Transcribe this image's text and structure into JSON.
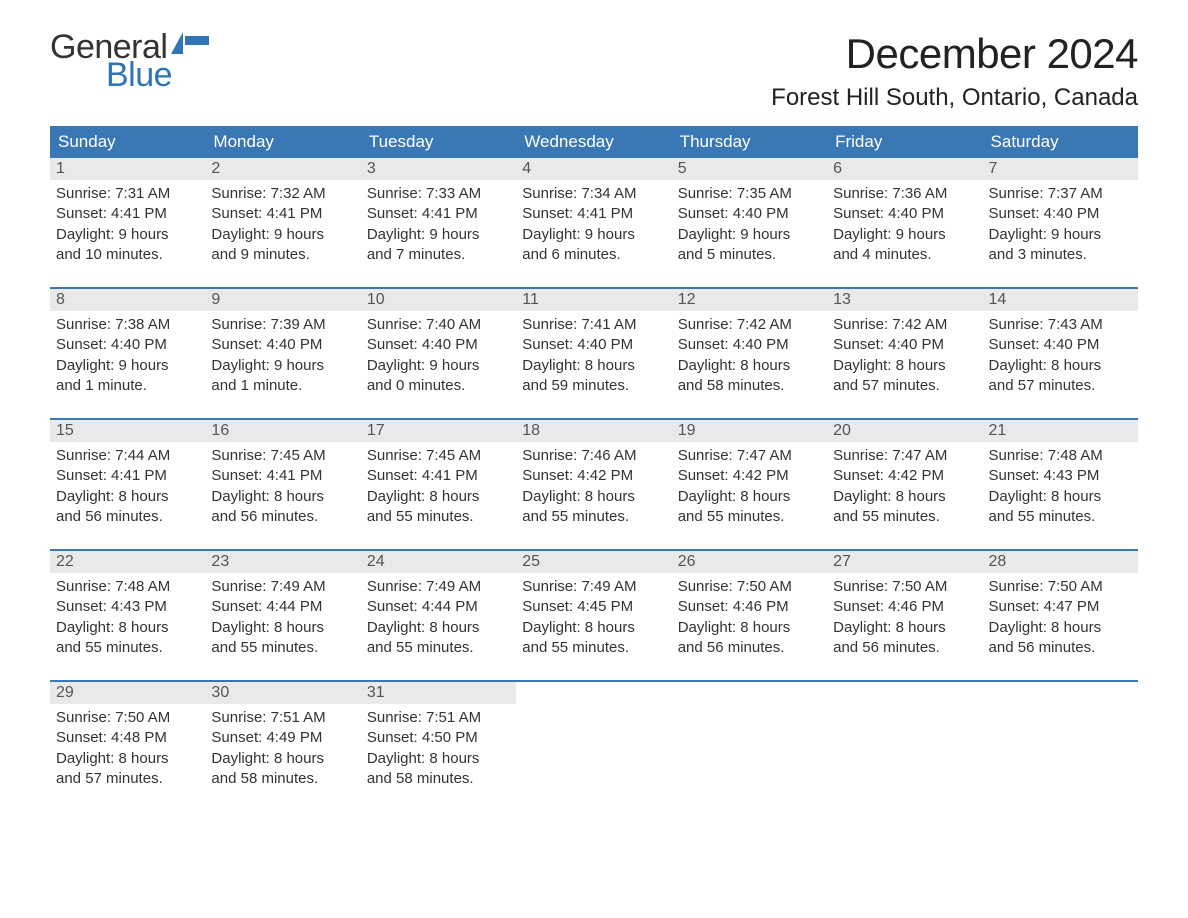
{
  "logo": {
    "word1": "General",
    "word2": "Blue"
  },
  "title": "December 2024",
  "location": "Forest Hill South, Ontario, Canada",
  "colors": {
    "header_bg": "#3a78b5",
    "header_text": "#ffffff",
    "daynum_bg": "#e9e9e9",
    "daynum_text": "#555555",
    "body_text": "#333333",
    "accent": "#2f75b5",
    "page_bg": "#ffffff"
  },
  "day_headers": [
    "Sunday",
    "Monday",
    "Tuesday",
    "Wednesday",
    "Thursday",
    "Friday",
    "Saturday"
  ],
  "weeks": [
    [
      {
        "n": "1",
        "sunrise": "Sunrise: 7:31 AM",
        "sunset": "Sunset: 4:41 PM",
        "day1": "Daylight: 9 hours",
        "day2": "and 10 minutes."
      },
      {
        "n": "2",
        "sunrise": "Sunrise: 7:32 AM",
        "sunset": "Sunset: 4:41 PM",
        "day1": "Daylight: 9 hours",
        "day2": "and 9 minutes."
      },
      {
        "n": "3",
        "sunrise": "Sunrise: 7:33 AM",
        "sunset": "Sunset: 4:41 PM",
        "day1": "Daylight: 9 hours",
        "day2": "and 7 minutes."
      },
      {
        "n": "4",
        "sunrise": "Sunrise: 7:34 AM",
        "sunset": "Sunset: 4:41 PM",
        "day1": "Daylight: 9 hours",
        "day2": "and 6 minutes."
      },
      {
        "n": "5",
        "sunrise": "Sunrise: 7:35 AM",
        "sunset": "Sunset: 4:40 PM",
        "day1": "Daylight: 9 hours",
        "day2": "and 5 minutes."
      },
      {
        "n": "6",
        "sunrise": "Sunrise: 7:36 AM",
        "sunset": "Sunset: 4:40 PM",
        "day1": "Daylight: 9 hours",
        "day2": "and 4 minutes."
      },
      {
        "n": "7",
        "sunrise": "Sunrise: 7:37 AM",
        "sunset": "Sunset: 4:40 PM",
        "day1": "Daylight: 9 hours",
        "day2": "and 3 minutes."
      }
    ],
    [
      {
        "n": "8",
        "sunrise": "Sunrise: 7:38 AM",
        "sunset": "Sunset: 4:40 PM",
        "day1": "Daylight: 9 hours",
        "day2": "and 1 minute."
      },
      {
        "n": "9",
        "sunrise": "Sunrise: 7:39 AM",
        "sunset": "Sunset: 4:40 PM",
        "day1": "Daylight: 9 hours",
        "day2": "and 1 minute."
      },
      {
        "n": "10",
        "sunrise": "Sunrise: 7:40 AM",
        "sunset": "Sunset: 4:40 PM",
        "day1": "Daylight: 9 hours",
        "day2": "and 0 minutes."
      },
      {
        "n": "11",
        "sunrise": "Sunrise: 7:41 AM",
        "sunset": "Sunset: 4:40 PM",
        "day1": "Daylight: 8 hours",
        "day2": "and 59 minutes."
      },
      {
        "n": "12",
        "sunrise": "Sunrise: 7:42 AM",
        "sunset": "Sunset: 4:40 PM",
        "day1": "Daylight: 8 hours",
        "day2": "and 58 minutes."
      },
      {
        "n": "13",
        "sunrise": "Sunrise: 7:42 AM",
        "sunset": "Sunset: 4:40 PM",
        "day1": "Daylight: 8 hours",
        "day2": "and 57 minutes."
      },
      {
        "n": "14",
        "sunrise": "Sunrise: 7:43 AM",
        "sunset": "Sunset: 4:40 PM",
        "day1": "Daylight: 8 hours",
        "day2": "and 57 minutes."
      }
    ],
    [
      {
        "n": "15",
        "sunrise": "Sunrise: 7:44 AM",
        "sunset": "Sunset: 4:41 PM",
        "day1": "Daylight: 8 hours",
        "day2": "and 56 minutes."
      },
      {
        "n": "16",
        "sunrise": "Sunrise: 7:45 AM",
        "sunset": "Sunset: 4:41 PM",
        "day1": "Daylight: 8 hours",
        "day2": "and 56 minutes."
      },
      {
        "n": "17",
        "sunrise": "Sunrise: 7:45 AM",
        "sunset": "Sunset: 4:41 PM",
        "day1": "Daylight: 8 hours",
        "day2": "and 55 minutes."
      },
      {
        "n": "18",
        "sunrise": "Sunrise: 7:46 AM",
        "sunset": "Sunset: 4:42 PM",
        "day1": "Daylight: 8 hours",
        "day2": "and 55 minutes."
      },
      {
        "n": "19",
        "sunrise": "Sunrise: 7:47 AM",
        "sunset": "Sunset: 4:42 PM",
        "day1": "Daylight: 8 hours",
        "day2": "and 55 minutes."
      },
      {
        "n": "20",
        "sunrise": "Sunrise: 7:47 AM",
        "sunset": "Sunset: 4:42 PM",
        "day1": "Daylight: 8 hours",
        "day2": "and 55 minutes."
      },
      {
        "n": "21",
        "sunrise": "Sunrise: 7:48 AM",
        "sunset": "Sunset: 4:43 PM",
        "day1": "Daylight: 8 hours",
        "day2": "and 55 minutes."
      }
    ],
    [
      {
        "n": "22",
        "sunrise": "Sunrise: 7:48 AM",
        "sunset": "Sunset: 4:43 PM",
        "day1": "Daylight: 8 hours",
        "day2": "and 55 minutes."
      },
      {
        "n": "23",
        "sunrise": "Sunrise: 7:49 AM",
        "sunset": "Sunset: 4:44 PM",
        "day1": "Daylight: 8 hours",
        "day2": "and 55 minutes."
      },
      {
        "n": "24",
        "sunrise": "Sunrise: 7:49 AM",
        "sunset": "Sunset: 4:44 PM",
        "day1": "Daylight: 8 hours",
        "day2": "and 55 minutes."
      },
      {
        "n": "25",
        "sunrise": "Sunrise: 7:49 AM",
        "sunset": "Sunset: 4:45 PM",
        "day1": "Daylight: 8 hours",
        "day2": "and 55 minutes."
      },
      {
        "n": "26",
        "sunrise": "Sunrise: 7:50 AM",
        "sunset": "Sunset: 4:46 PM",
        "day1": "Daylight: 8 hours",
        "day2": "and 56 minutes."
      },
      {
        "n": "27",
        "sunrise": "Sunrise: 7:50 AM",
        "sunset": "Sunset: 4:46 PM",
        "day1": "Daylight: 8 hours",
        "day2": "and 56 minutes."
      },
      {
        "n": "28",
        "sunrise": "Sunrise: 7:50 AM",
        "sunset": "Sunset: 4:47 PM",
        "day1": "Daylight: 8 hours",
        "day2": "and 56 minutes."
      }
    ],
    [
      {
        "n": "29",
        "sunrise": "Sunrise: 7:50 AM",
        "sunset": "Sunset: 4:48 PM",
        "day1": "Daylight: 8 hours",
        "day2": "and 57 minutes."
      },
      {
        "n": "30",
        "sunrise": "Sunrise: 7:51 AM",
        "sunset": "Sunset: 4:49 PM",
        "day1": "Daylight: 8 hours",
        "day2": "and 58 minutes."
      },
      {
        "n": "31",
        "sunrise": "Sunrise: 7:51 AM",
        "sunset": "Sunset: 4:50 PM",
        "day1": "Daylight: 8 hours",
        "day2": "and 58 minutes."
      },
      {
        "n": "",
        "sunrise": "",
        "sunset": "",
        "day1": "",
        "day2": ""
      },
      {
        "n": "",
        "sunrise": "",
        "sunset": "",
        "day1": "",
        "day2": ""
      },
      {
        "n": "",
        "sunrise": "",
        "sunset": "",
        "day1": "",
        "day2": ""
      },
      {
        "n": "",
        "sunrise": "",
        "sunset": "",
        "day1": "",
        "day2": ""
      }
    ]
  ]
}
